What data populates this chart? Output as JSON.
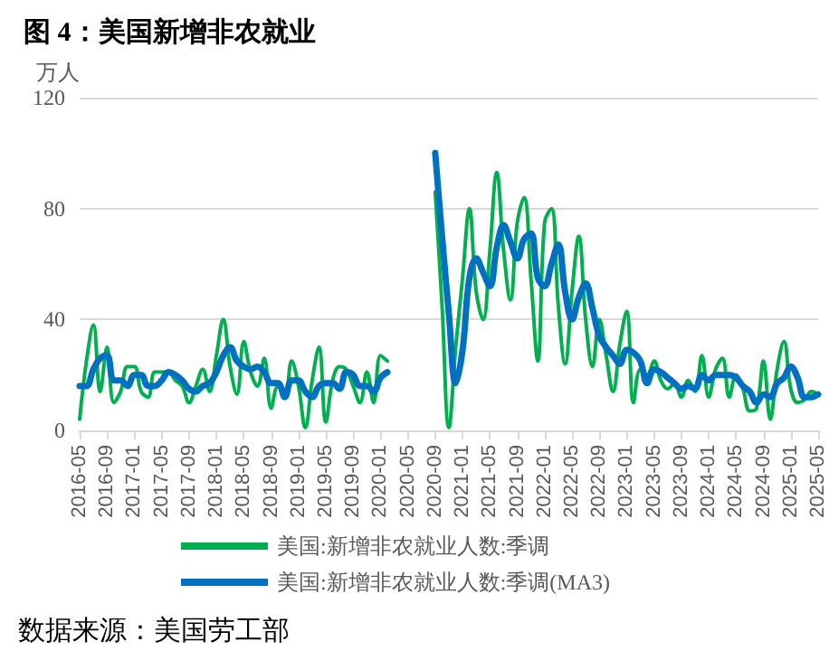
{
  "chart_data": {
    "type": "line",
    "title": "图 4：美国新增非农就业",
    "ylabel": "万人",
    "x": [
      "2016-05",
      "2016-06",
      "2016-07",
      "2016-08",
      "2016-09",
      "2016-10",
      "2016-11",
      "2016-12",
      "2017-01",
      "2017-02",
      "2017-03",
      "2017-04",
      "2017-05",
      "2017-06",
      "2017-07",
      "2017-08",
      "2017-09",
      "2017-10",
      "2017-11",
      "2017-12",
      "2018-01",
      "2018-02",
      "2018-03",
      "2018-04",
      "2018-05",
      "2018-06",
      "2018-07",
      "2018-08",
      "2018-09",
      "2018-10",
      "2018-11",
      "2018-12",
      "2019-01",
      "2019-02",
      "2019-03",
      "2019-04",
      "2019-05",
      "2019-06",
      "2019-07",
      "2019-08",
      "2019-09",
      "2019-10",
      "2019-11",
      "2019-12",
      "2020-01",
      "2020-02",
      "2020-03",
      "2020-04",
      "2020-05",
      "2020-06",
      "2020-07",
      "2020-08",
      "2020-09",
      "2020-10",
      "2020-11",
      "2020-12",
      "2021-01",
      "2021-02",
      "2021-03",
      "2021-04",
      "2021-05",
      "2021-06",
      "2021-07",
      "2021-08",
      "2021-09",
      "2021-10",
      "2021-11",
      "2021-12",
      "2022-01",
      "2022-02",
      "2022-03",
      "2022-04",
      "2022-05",
      "2022-06",
      "2022-07",
      "2022-08",
      "2022-09",
      "2022-10",
      "2022-11",
      "2022-12",
      "2023-01",
      "2023-02",
      "2023-03",
      "2023-04",
      "2023-05",
      "2023-06",
      "2023-07",
      "2023-08",
      "2023-09",
      "2023-10",
      "2023-11",
      "2023-12",
      "2024-01",
      "2024-02",
      "2024-03",
      "2024-04",
      "2024-05",
      "2024-06",
      "2024-07",
      "2024-08",
      "2024-09",
      "2024-10",
      "2024-11",
      "2024-12",
      "2025-01",
      "2025-02",
      "2025-03",
      "2025-04",
      "2025-05"
    ],
    "series": [
      {
        "name": "美国:新增非农就业人数:季调",
        "color": "#00b050",
        "values": [
          4,
          25,
          38,
          14,
          30,
          10,
          14,
          23,
          23,
          14,
          12,
          21,
          21,
          21,
          18,
          16,
          10,
          16,
          22,
          14,
          27,
          40,
          23,
          13,
          32,
          21,
          16,
          26,
          8,
          16,
          12,
          25,
          16,
          1,
          18,
          30,
          3,
          18,
          23,
          22,
          16,
          10,
          21,
          10,
          27,
          25,
          null,
          null,
          null,
          null,
          null,
          null,
          86,
          45,
          1,
          30,
          55,
          80,
          50,
          40,
          65,
          93,
          65,
          47,
          75,
          84,
          55,
          25,
          75,
          80,
          45,
          24,
          50,
          70,
          40,
          23,
          40,
          27,
          14,
          31,
          43,
          10,
          22,
          20,
          25,
          18,
          15,
          17,
          12,
          18,
          14,
          27,
          12,
          22,
          26,
          12,
          20,
          15,
          7,
          8,
          25,
          4,
          22,
          32,
          15,
          10,
          11,
          14,
          13
        ]
      },
      {
        "name": "美国:新增非农就业人数:季调(MA3)",
        "color": "#0070c0",
        "values": [
          16,
          16,
          22,
          26,
          27,
          18,
          18,
          16,
          20,
          20,
          16,
          16,
          18,
          21,
          20,
          18,
          15,
          14,
          16,
          17,
          21,
          27,
          30,
          25,
          23,
          22,
          23,
          21,
          17,
          17,
          12,
          18,
          18,
          14,
          12,
          16,
          17,
          17,
          15,
          21,
          20,
          16,
          16,
          14,
          19,
          21,
          null,
          null,
          null,
          null,
          null,
          null,
          100,
          70,
          42,
          17,
          29,
          55,
          62,
          57,
          52,
          66,
          74,
          68,
          62,
          69,
          71,
          55,
          52,
          60,
          67,
          50,
          40,
          48,
          53,
          44,
          34,
          30,
          27,
          24,
          29,
          28,
          25,
          17,
          22,
          21,
          19,
          17,
          15,
          16,
          15,
          20,
          18,
          20,
          20,
          20,
          19,
          16,
          14,
          10,
          13,
          12,
          17,
          19,
          23,
          19,
          12,
          12,
          13
        ]
      }
    ],
    "xlim": [
      "2016-05",
      "2025-05"
    ],
    "ylim": [
      0,
      120
    ],
    "yticks": [
      0,
      40,
      80,
      120
    ],
    "xticks": [
      "2016-05",
      "2016-09",
      "2017-01",
      "2017-05",
      "2017-09",
      "2018-01",
      "2018-05",
      "2018-09",
      "2019-01",
      "2019-05",
      "2019-09",
      "2020-01",
      "2020-05",
      "2020-09",
      "2021-01",
      "2021-05",
      "2021-09",
      "2022-01",
      "2022-05",
      "2022-09",
      "2023-01",
      "2023-05",
      "2023-09",
      "2024-01",
      "2024-05",
      "2024-09",
      "2025-01",
      "2025-05"
    ],
    "grid": "y",
    "legend": "bottom",
    "marker": "none",
    "annotations": [
      "数据来源：美国劳工部"
    ]
  }
}
